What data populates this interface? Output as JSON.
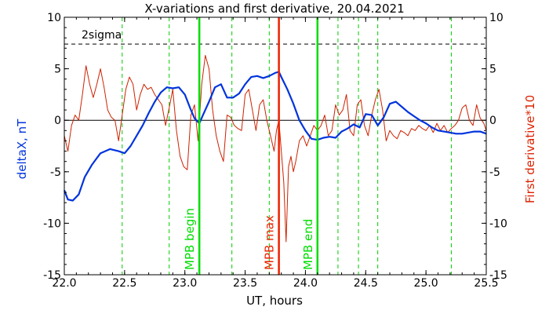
{
  "chart_data": {
    "type": "line",
    "title": "X-variations and first derivative, 20.04.2021",
    "xlabel": "UT, hours",
    "ylabel_left": "deltaX, nT",
    "ylabel_right": "First derivative*10",
    "xlim": [
      22.0,
      25.5
    ],
    "ylim": [
      -15,
      10
    ],
    "x_ticks": [
      22.0,
      22.5,
      23.0,
      23.5,
      24.0,
      24.5,
      25.0,
      25.5
    ],
    "x_tick_labels": [
      "22.0",
      "22.5",
      "23.0",
      "23.5",
      "24.0",
      "24.5",
      "25.0",
      "25.5"
    ],
    "y_ticks": [
      -15,
      -10,
      -5,
      0,
      5,
      10
    ],
    "y_tick_labels_left": [
      "-15",
      "-10",
      "-5",
      "0",
      "5",
      "10"
    ],
    "y_tick_labels_right": [
      "-15",
      "-10",
      "-5",
      "0",
      "5",
      "10"
    ],
    "threshold": {
      "label": "2sigma",
      "value": 7.4,
      "color": "#000000"
    },
    "zero_line": 0,
    "dashed_verticals": [
      22.48,
      22.87,
      23.39,
      23.7,
      24.27,
      24.44,
      24.6,
      25.21
    ],
    "event_lines": [
      {
        "x": 23.12,
        "label": "MPB begin",
        "color": "#00dd00"
      },
      {
        "x": 23.78,
        "label": "MPB max",
        "color": "#ee2200"
      },
      {
        "x": 24.1,
        "label": "MPB end",
        "color": "#00dd00"
      }
    ],
    "colors": {
      "deltaX": "#0033dd",
      "derivative": "#cc2200",
      "dashed": "#00cc00",
      "left_label": "#0033dd",
      "right_label": "#dd2200"
    },
    "series": [
      {
        "name": "deltaX",
        "x": [
          22.0,
          22.03,
          22.07,
          22.12,
          22.17,
          22.23,
          22.3,
          22.38,
          22.45,
          22.5,
          22.55,
          22.6,
          22.65,
          22.7,
          22.75,
          22.8,
          22.85,
          22.9,
          22.95,
          23.0,
          23.05,
          23.08,
          23.12,
          23.15,
          23.2,
          23.25,
          23.3,
          23.35,
          23.4,
          23.45,
          23.5,
          23.55,
          23.6,
          23.65,
          23.7,
          23.75,
          23.78,
          23.8,
          23.85,
          23.9,
          23.95,
          24.0,
          24.05,
          24.1,
          24.15,
          24.2,
          24.25,
          24.3,
          24.35,
          24.4,
          24.45,
          24.5,
          24.55,
          24.6,
          24.65,
          24.7,
          24.75,
          24.8,
          24.85,
          24.9,
          24.95,
          25.0,
          25.05,
          25.1,
          25.15,
          25.2,
          25.25,
          25.3,
          25.35,
          25.4,
          25.45,
          25.5
        ],
        "y": [
          -6.8,
          -7.7,
          -7.8,
          -7.2,
          -5.5,
          -4.3,
          -3.2,
          -2.8,
          -3.0,
          -3.2,
          -2.5,
          -1.5,
          -0.5,
          0.7,
          1.8,
          2.7,
          3.2,
          3.1,
          3.2,
          2.5,
          1.0,
          0.2,
          -0.3,
          0.5,
          1.8,
          3.2,
          3.5,
          2.2,
          2.2,
          2.6,
          3.5,
          4.2,
          4.3,
          4.1,
          4.3,
          4.6,
          4.7,
          4.2,
          3.0,
          1.6,
          0.0,
          -1.0,
          -1.8,
          -1.9,
          -1.7,
          -1.6,
          -1.7,
          -1.1,
          -0.8,
          -0.4,
          -0.7,
          0.6,
          0.5,
          -0.5,
          0.3,
          1.6,
          1.8,
          1.3,
          0.8,
          0.4,
          0.0,
          -0.3,
          -0.7,
          -1.0,
          -1.1,
          -1.2,
          -1.3,
          -1.3,
          -1.2,
          -1.1,
          -1.1,
          -1.3
        ]
      },
      {
        "name": "First derivative*10",
        "x": [
          22.0,
          22.03,
          22.06,
          22.09,
          22.12,
          22.15,
          22.18,
          22.21,
          22.24,
          22.27,
          22.3,
          22.33,
          22.36,
          22.39,
          22.42,
          22.45,
          22.48,
          22.51,
          22.54,
          22.57,
          22.6,
          22.63,
          22.66,
          22.69,
          22.72,
          22.75,
          22.78,
          22.81,
          22.84,
          22.87,
          22.9,
          22.93,
          22.96,
          22.99,
          23.02,
          23.05,
          23.08,
          23.11,
          23.14,
          23.17,
          23.2,
          23.23,
          23.26,
          23.29,
          23.32,
          23.35,
          23.38,
          23.41,
          23.44,
          23.47,
          23.5,
          23.53,
          23.56,
          23.59,
          23.62,
          23.65,
          23.68,
          23.71,
          23.74,
          23.76,
          23.78,
          23.8,
          23.82,
          23.84,
          23.86,
          23.88,
          23.9,
          23.92,
          23.95,
          23.98,
          24.01,
          24.04,
          24.07,
          24.1,
          24.13,
          24.16,
          24.19,
          24.22,
          24.25,
          24.28,
          24.31,
          24.34,
          24.37,
          24.4,
          24.43,
          24.46,
          24.49,
          24.52,
          24.55,
          24.58,
          24.61,
          24.64,
          24.67,
          24.7,
          24.73,
          24.76,
          24.79,
          24.82,
          24.85,
          24.88,
          24.91,
          24.94,
          24.97,
          25.0,
          25.03,
          25.06,
          25.09,
          25.12,
          25.15,
          25.18,
          25.21,
          25.24,
          25.27,
          25.3,
          25.33,
          25.36,
          25.39,
          25.42,
          25.45,
          25.48,
          25.5
        ],
        "y": [
          -1.5,
          -3.0,
          -0.5,
          0.5,
          0.0,
          2.5,
          5.3,
          3.5,
          2.2,
          3.5,
          5.0,
          3.2,
          1.0,
          0.3,
          0.0,
          -2.0,
          0.5,
          3.0,
          4.2,
          3.5,
          1.0,
          2.5,
          3.5,
          3.0,
          3.2,
          2.5,
          2.0,
          1.5,
          -0.5,
          1.2,
          3.0,
          -1.0,
          -3.5,
          -4.5,
          -4.8,
          0.5,
          1.5,
          -2.0,
          3.5,
          6.3,
          5.0,
          1.0,
          -1.5,
          -3.0,
          -4.0,
          0.5,
          0.3,
          -0.5,
          -0.8,
          -1.0,
          2.5,
          3.0,
          1.0,
          -1.0,
          1.5,
          2.0,
          0.0,
          -1.5,
          -3.0,
          -1.0,
          0.0,
          -3.0,
          -6.0,
          -11.8,
          -4.5,
          -3.5,
          -5.0,
          -4.0,
          -2.0,
          -1.5,
          -2.5,
          -1.5,
          -0.5,
          -1.0,
          -0.5,
          0.5,
          -1.5,
          -1.0,
          1.5,
          0.5,
          1.0,
          2.5,
          -1.0,
          -1.5,
          1.5,
          2.0,
          -0.5,
          -1.5,
          0.5,
          2.0,
          3.0,
          1.0,
          -2.0,
          -1.0,
          -1.5,
          -1.8,
          -1.0,
          -1.2,
          -1.5,
          -0.8,
          -1.0,
          -0.5,
          -0.8,
          -1.0,
          -0.5,
          -1.2,
          -0.3,
          -1.0,
          -0.5,
          -1.2,
          -0.8,
          -0.5,
          0.0,
          1.2,
          1.5,
          0.0,
          -0.5,
          1.5,
          0.2,
          -0.3,
          -1.0
        ]
      }
    ]
  }
}
